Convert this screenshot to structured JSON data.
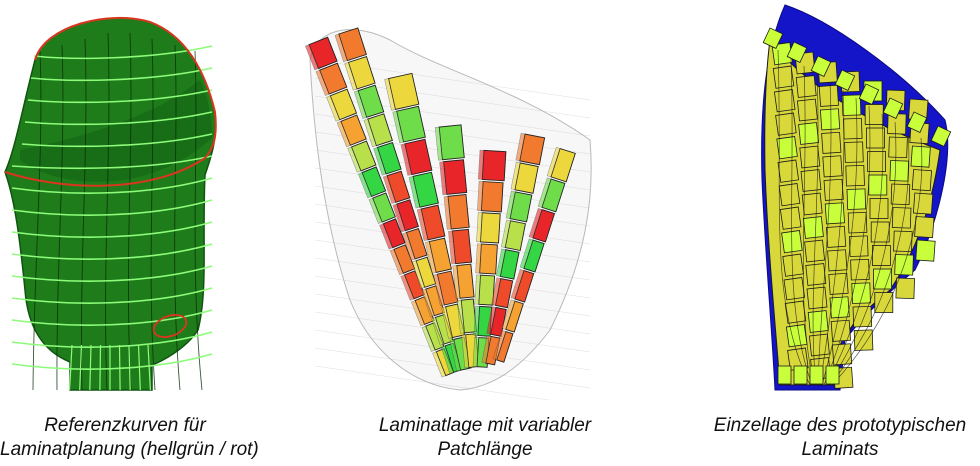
{
  "figure": {
    "panels": [
      {
        "id": "reference-curves",
        "caption_line1": "Referenzkurven für",
        "caption_line2": "Laminatplanung (hellgrün / rot)",
        "colors": {
          "surface": "#1e7d1a",
          "surface_dark": "#0f5410",
          "curve_green": "#8dfc7a",
          "curve_red": "#d8361f",
          "mesh": "#0a2a0a"
        }
      },
      {
        "id": "variable-patch-length",
        "caption_line1": "Laminatlage mit variabler",
        "caption_line2": "Patchlänge",
        "colors": {
          "patch_scale": [
            "#e8262a",
            "#ef4b2b",
            "#f27a2e",
            "#f5a233",
            "#ecd83c",
            "#b8e04a",
            "#6fdc4a",
            "#35d643"
          ],
          "mesh": "#b9b9b9"
        }
      },
      {
        "id": "single-layer-prototype",
        "caption_line1": "Einzellage des prototypischen",
        "caption_line2": "Laminats",
        "colors": {
          "base": "#1414c8",
          "patch": "#d9d83a",
          "patch_light": "#c8ff3a",
          "outline": "#1a1a1a"
        }
      }
    ]
  }
}
